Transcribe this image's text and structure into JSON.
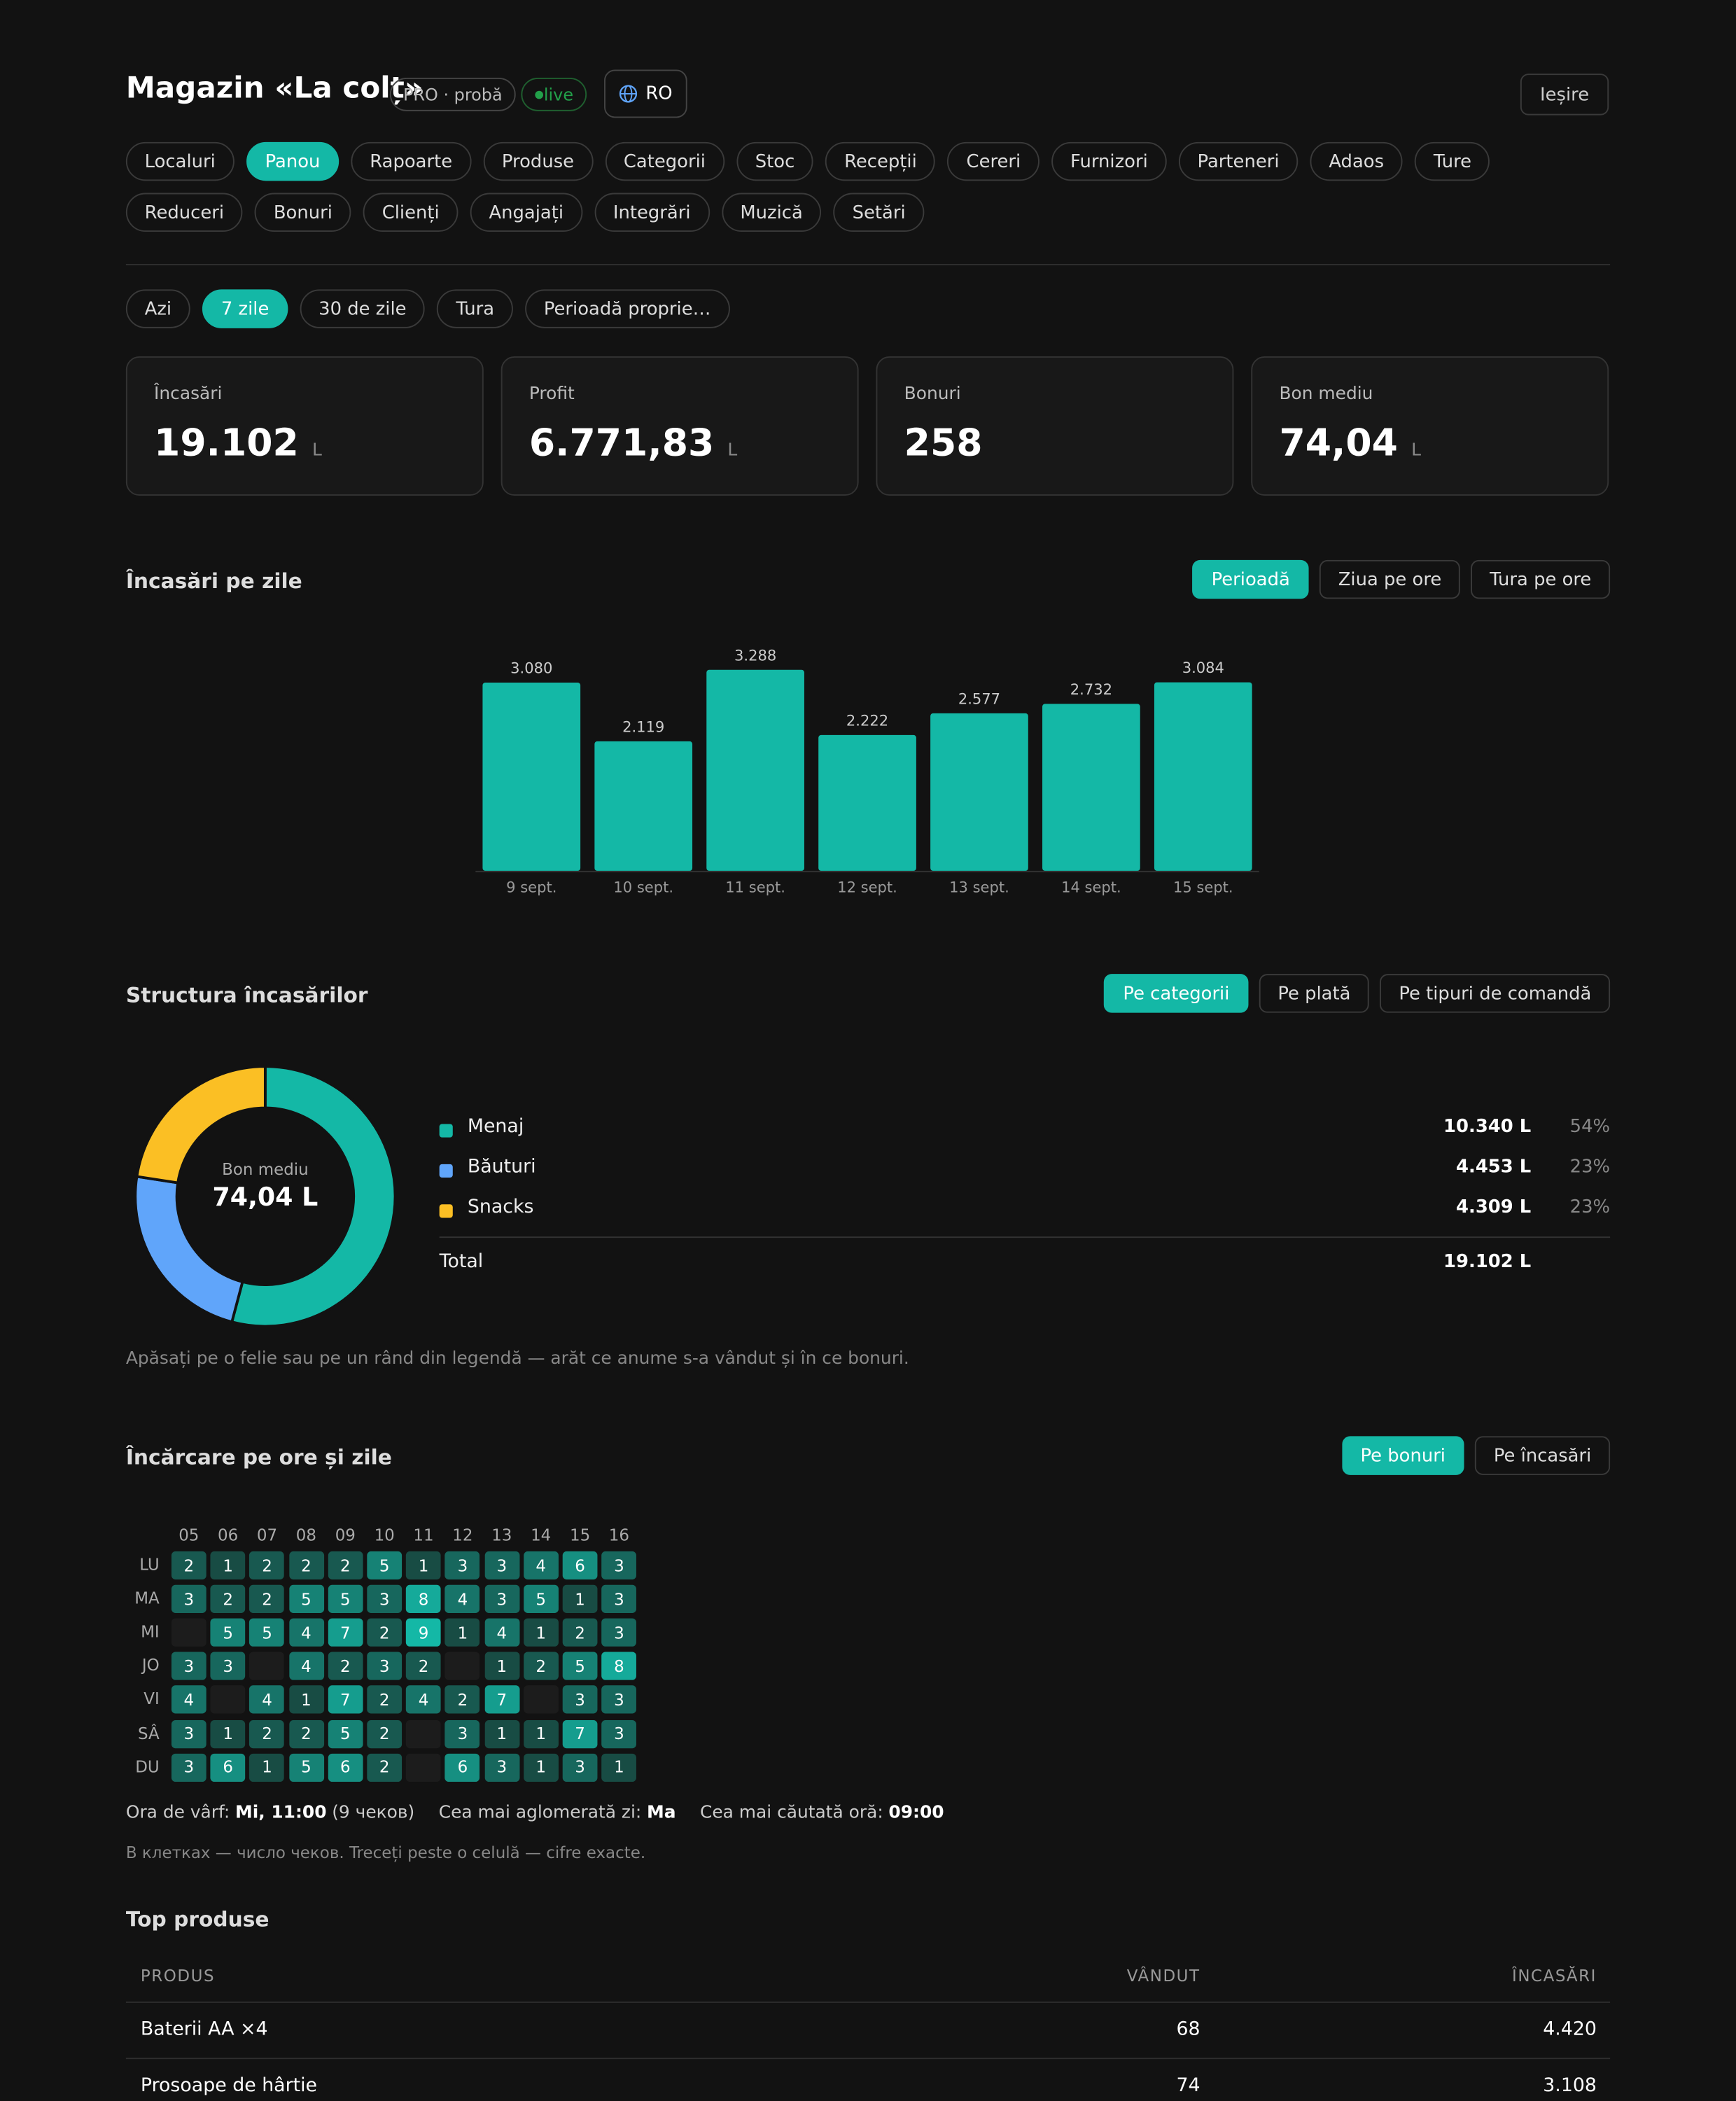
{
  "header": {
    "title": "Magazin «La colț»",
    "plan": "PRO · probă",
    "status": "live",
    "language": "RO",
    "logout": "Ieșire"
  },
  "nav": {
    "items": [
      "Localuri",
      "Panou",
      "Rapoarte",
      "Produse",
      "Categorii",
      "Stoc",
      "Recepții",
      "Cereri",
      "Furnizori",
      "Parteneri",
      "Adaos",
      "Ture",
      "Reduceri",
      "Bonuri",
      "Clienți",
      "Angajați",
      "Integrări",
      "Muzică",
      "Setări"
    ],
    "active": 1
  },
  "periods": {
    "items": [
      "Azi",
      "7 zile",
      "30 de zile",
      "Tura",
      "Perioadă proprie…"
    ],
    "active": 1
  },
  "kpis": [
    {
      "label": "Încasări",
      "value": "19.102",
      "unit": "L"
    },
    {
      "label": "Profit",
      "value": "6.771,83",
      "unit": "L"
    },
    {
      "label": "Bonuri",
      "value": "258"
    },
    {
      "label": "Bon mediu",
      "value": "74,04",
      "unit": "L"
    }
  ],
  "chart_data": [
    {
      "type": "bar",
      "title": "Încasări pe zile",
      "views": [
        "Perioadă",
        "Ziua pe ore",
        "Tura pe ore"
      ],
      "active_view": 0,
      "categories": [
        "9 sept.",
        "10 sept.",
        "11 sept.",
        "12 sept.",
        "13 sept.",
        "14 sept.",
        "15 sept."
      ],
      "values": [
        3080,
        2119,
        3288,
        2222,
        2577,
        2732,
        3084
      ],
      "value_labels": [
        "3.080",
        "2.119",
        "3.288",
        "2.222",
        "2.577",
        "2.732",
        "3.084"
      ],
      "color": "#14b8a6"
    },
    {
      "type": "pie",
      "title": "Structura încasărilor",
      "views": [
        "Pe categorii",
        "Pe plată",
        "Pe tipuri de comandă"
      ],
      "active_view": 0,
      "center_label": "Bon mediu",
      "center_value": "74,04 L",
      "categories": [
        "Menaj",
        "Băuturi",
        "Snacks"
      ],
      "values": [
        10340,
        4453,
        4309
      ],
      "value_labels": [
        "10.340 L",
        "4.453 L",
        "4.309 L"
      ],
      "shares": [
        54,
        23,
        23
      ],
      "share_labels": [
        "54%",
        "23%",
        "23%"
      ],
      "colors": [
        "#14b8a6",
        "#60a5fa",
        "#fbbf24"
      ],
      "total_name": "Total",
      "total": 19102,
      "total_label": "19.102 L",
      "note": "Apăsați pe o felie sau pe un rând din legendă — arăt ce anume s-a vândut și în ce bonuri."
    },
    {
      "type": "heatmap",
      "title": "Încărcare pe ore și zile",
      "views": [
        "Pe bonuri",
        "Pe încasări"
      ],
      "active_view": 0,
      "x": [
        "05",
        "06",
        "07",
        "08",
        "09",
        "10",
        "11",
        "12",
        "13",
        "14",
        "15",
        "16"
      ],
      "y": [
        "LU",
        "MA",
        "MI",
        "JO",
        "VI",
        "SÂ",
        "DU"
      ],
      "values": [
        [
          2,
          1,
          2,
          2,
          2,
          5,
          1,
          3,
          3,
          4,
          6,
          3
        ],
        [
          3,
          2,
          2,
          5,
          5,
          3,
          8,
          4,
          3,
          5,
          1,
          3
        ],
        [
          null,
          5,
          5,
          4,
          7,
          2,
          9,
          1,
          4,
          1,
          2,
          3
        ],
        [
          3,
          3,
          null,
          4,
          2,
          3,
          2,
          null,
          1,
          2,
          5,
          8
        ],
        [
          4,
          null,
          4,
          1,
          7,
          2,
          4,
          2,
          7,
          null,
          3,
          3
        ],
        [
          3,
          1,
          2,
          2,
          5,
          2,
          null,
          3,
          1,
          1,
          7,
          3
        ],
        [
          3,
          6,
          1,
          5,
          6,
          2,
          null,
          6,
          3,
          1,
          3,
          1
        ]
      ],
      "summary": [
        {
          "label": "Ora de vârf:",
          "value": "Mi, 11:00",
          "extra": "(9 чеков)"
        },
        {
          "label": "Cea mai aglomerată zi:",
          "value": "Ma"
        },
        {
          "label": "Cea mai căutată oră:",
          "value": "09:00"
        }
      ],
      "note": "В клетках — число чеков. Treceți peste o celulă — cifre exacte."
    }
  ],
  "top_products": {
    "title": "Top produse",
    "columns": [
      "PRODUS",
      "VÂNDUT",
      "ÎNCASĂRI"
    ],
    "rows": [
      [
        "Baterii AA ×4",
        "68",
        "4.420"
      ],
      [
        "Prosoape de hârtie",
        "74",
        "3.108"
      ]
    ]
  }
}
